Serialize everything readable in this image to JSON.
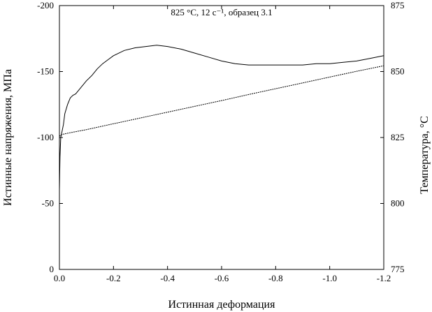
{
  "chart_data": {
    "type": "line",
    "title": "825 °C, 12 c⁻¹, образец 3.1",
    "xlabel": "Истинная деформация",
    "ylabel_left": "Истинные напряжения, МПа",
    "ylabel_right": "Температура, °C",
    "xlim": [
      0.0,
      -1.2
    ],
    "ylim_left": [
      0,
      -200
    ],
    "ylim_right": [
      775,
      875
    ],
    "x_ticks": [
      "0.0",
      "-0.2",
      "-0.4",
      "-0.6",
      "-0.8",
      "-1.0",
      "-1.2"
    ],
    "y_left_ticks": [
      "0",
      "-50",
      "-100",
      "-150",
      "-200"
    ],
    "y_right_ticks": [
      "775",
      "800",
      "825",
      "850",
      "875"
    ],
    "grid": false,
    "series": [
      {
        "axis": "left",
        "color": "#000000",
        "x": [
          0.0,
          -0.002,
          -0.005,
          -0.01,
          -0.015,
          -0.02,
          -0.03,
          -0.04,
          -0.05,
          -0.06,
          -0.08,
          -0.1,
          -0.12,
          -0.14,
          -0.16,
          -0.18,
          -0.2,
          -0.24,
          -0.28,
          -0.32,
          -0.36,
          -0.4,
          -0.45,
          -0.5,
          -0.55,
          -0.6,
          -0.65,
          -0.7,
          -0.75,
          -0.8,
          -0.85,
          -0.9,
          -0.95,
          -1.0,
          -1.05,
          -1.1,
          -1.15,
          -1.2
        ],
        "values": [
          -60,
          -85,
          -100,
          -105,
          -110,
          -118,
          -125,
          -130,
          -132,
          -133,
          -138,
          -143,
          -147,
          -152,
          -156,
          -159,
          -162,
          -166,
          -168,
          -169,
          -170,
          -169,
          -167,
          -164,
          -161,
          -158,
          -156,
          -155,
          -155,
          -155,
          -155,
          -155,
          -156,
          -156,
          -157,
          -158,
          -160,
          -162
        ]
      },
      {
        "axis": "right",
        "color": "#000000",
        "x": [
          0.0,
          -0.005,
          -0.01,
          -0.02,
          -0.05,
          -0.1,
          -0.2,
          -0.3,
          -0.4,
          -0.5,
          -0.6,
          -0.7,
          -0.8,
          -0.9,
          -1.0,
          -1.1,
          -1.2
        ],
        "values": [
          825.5,
          825.9,
          826.1,
          826.4,
          827.0,
          828.0,
          830.2,
          832.4,
          834.6,
          836.8,
          839.0,
          841.3,
          843.5,
          845.7,
          847.9,
          850.1,
          852.2
        ]
      }
    ]
  }
}
